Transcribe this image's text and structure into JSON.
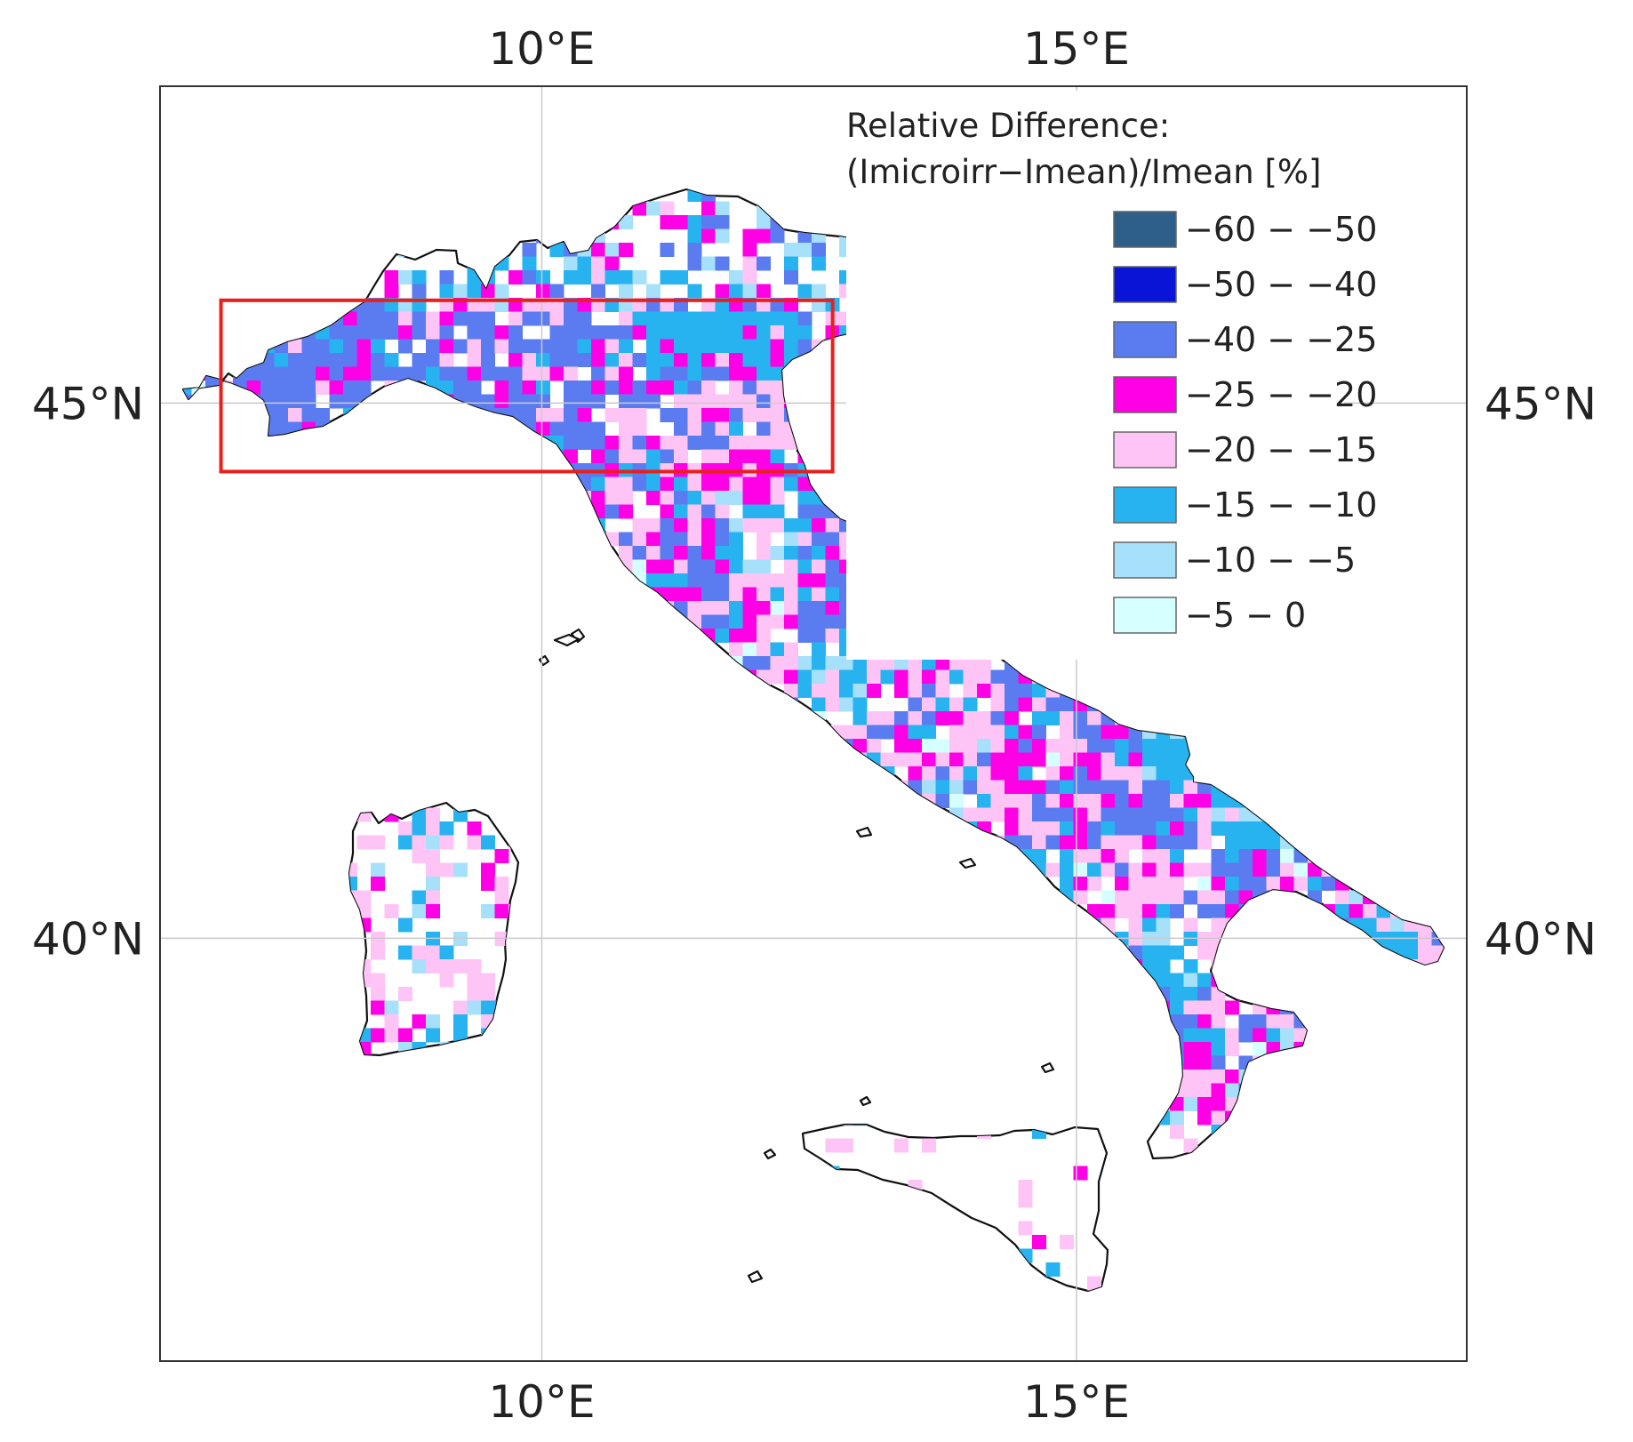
{
  "map": {
    "longitude_ticks": [
      {
        "value": 10,
        "label": "10°E"
      },
      {
        "value": 15,
        "label": "15°E"
      }
    ],
    "latitude_ticks": [
      {
        "value": 45,
        "label": "45°N"
      },
      {
        "value": 40,
        "label": "40°N"
      }
    ],
    "extent": {
      "lon_min": 6.43,
      "lon_max": 18.65,
      "lat_min": 36.05,
      "lat_max": 47.96
    },
    "highlight_box": {
      "lon_min": 7.0,
      "lon_max": 12.72,
      "lat_min": 44.36,
      "lat_max": 45.96,
      "color": "#e8201c"
    },
    "grid_lines": true
  },
  "legend": {
    "title_line1": "Relative Difference:",
    "title_line2": "(Imicroirr−Imean)/Imean [%]",
    "placement": "top-right",
    "classes": [
      {
        "label": "−60 − −50",
        "color": "#2e5f8a"
      },
      {
        "label": "−50 − −40",
        "color": "#0a14d6"
      },
      {
        "label": "−40 − −25",
        "color": "#5b7cf0"
      },
      {
        "label": "−25 − −20",
        "color": "#ff00e6"
      },
      {
        "label": "−20 − −15",
        "color": "#ffc4f6"
      },
      {
        "label": "−15 − −10",
        "color": "#27b3f0"
      },
      {
        "label": "−10 − −5",
        "color": "#a6e0fb"
      },
      {
        "label": "−5 − 0",
        "color": "#d6ffff"
      }
    ]
  }
}
